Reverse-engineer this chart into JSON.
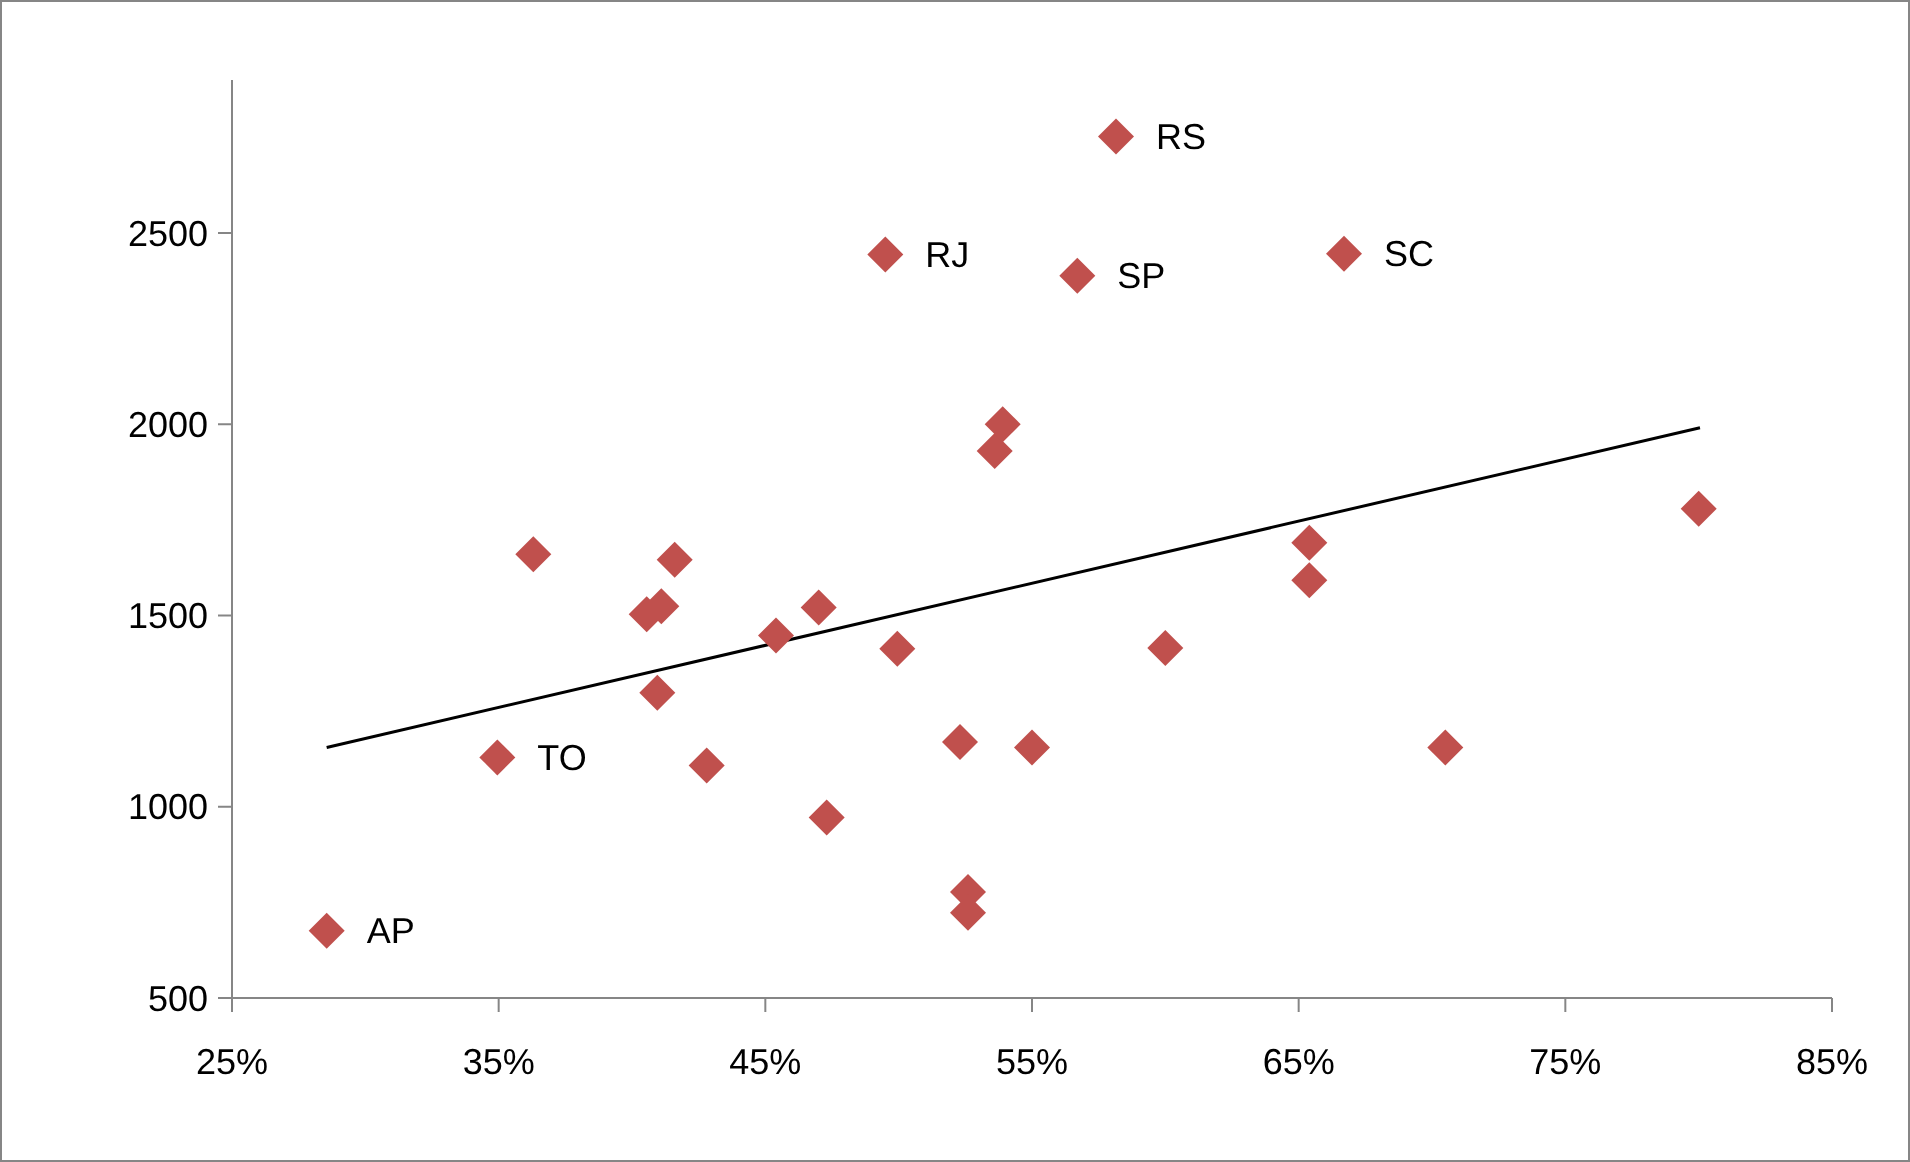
{
  "chart_data": {
    "type": "scatter",
    "xlim": [
      25,
      85
    ],
    "xticks": [
      {
        "value": 25,
        "label": "25%"
      },
      {
        "value": 35,
        "label": "35%"
      },
      {
        "value": 45,
        "label": "45%"
      },
      {
        "value": 55,
        "label": "55%"
      },
      {
        "value": 65,
        "label": "65%"
      },
      {
        "value": 75,
        "label": "75%"
      },
      {
        "value": 85,
        "label": "85%"
      }
    ],
    "ylim": [
      500,
      2900
    ],
    "yticks": [
      500,
      1000,
      1500,
      2000,
      2500
    ],
    "grid": false,
    "series": [
      {
        "marker": "diamond",
        "color": "#c0504d",
        "x": [
          28.55,
          34.95,
          36.3,
          40.55,
          41.1,
          41.6,
          40.95,
          42.8,
          45.4,
          47.0,
          47.3,
          49.5,
          49.95,
          52.3,
          52.6,
          52.6,
          53.6,
          53.9,
          55.0,
          56.7,
          58.15,
          66.7,
          65.4,
          65.4,
          60.0,
          70.5,
          80.0
        ],
        "values": [
          676,
          1129,
          1660,
          1503,
          1524,
          1646,
          1298,
          1108,
          1448,
          1521,
          972,
          2444,
          1413,
          1169,
          777,
          723,
          1930,
          2000,
          1155,
          2388,
          2752,
          2446,
          1690,
          1592,
          1415,
          1155,
          1779
        ]
      },
      {
        "type": "line",
        "marker": "none",
        "color": "#000000",
        "x": [
          28.55,
          80.05
        ],
        "values": [
          1155,
          1991
        ]
      }
    ],
    "annotations": [
      {
        "text": "RS",
        "x": 58.15,
        "y": 2752
      },
      {
        "text": "RJ",
        "x": 49.5,
        "y": 2444
      },
      {
        "text": "SP",
        "x": 56.7,
        "y": 2388
      },
      {
        "text": "SC",
        "x": 66.7,
        "y": 2446
      },
      {
        "text": "TO",
        "x": 34.95,
        "y": 1129
      },
      {
        "text": "AP",
        "x": 28.55,
        "y": 676
      }
    ]
  }
}
